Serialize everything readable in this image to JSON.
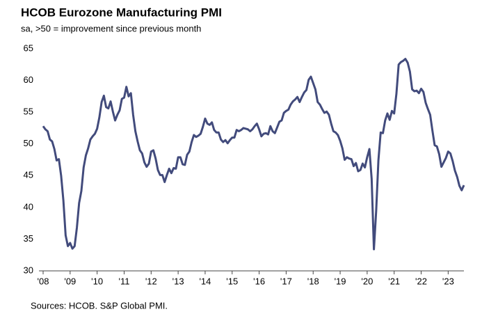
{
  "chart_data": {
    "type": "line",
    "title": "HCOB Eurozone Manufacturing PMI",
    "subtitle": "sa, >50 = improvement  since previous month",
    "source": "Sources: HCOB. S&P Global PMI.",
    "categories": [
      "'08",
      null,
      null,
      null,
      null,
      null,
      null,
      null,
      null,
      null,
      null,
      null,
      "'09",
      null,
      null,
      null,
      null,
      null,
      null,
      null,
      null,
      null,
      null,
      null,
      "'10",
      null,
      null,
      null,
      null,
      null,
      null,
      null,
      null,
      null,
      null,
      null,
      "'11",
      null,
      null,
      null,
      null,
      null,
      null,
      null,
      null,
      null,
      null,
      null,
      "'12",
      null,
      null,
      null,
      null,
      null,
      null,
      null,
      null,
      null,
      null,
      null,
      "'13",
      null,
      null,
      null,
      null,
      null,
      null,
      null,
      null,
      null,
      null,
      null,
      "'14",
      null,
      null,
      null,
      null,
      null,
      null,
      null,
      null,
      null,
      null,
      null,
      "'15",
      null,
      null,
      null,
      null,
      null,
      null,
      null,
      null,
      null,
      null,
      null,
      "'16",
      null,
      null,
      null,
      null,
      null,
      null,
      null,
      null,
      null,
      null,
      null,
      "'17",
      null,
      null,
      null,
      null,
      null,
      null,
      null,
      null,
      null,
      null,
      null,
      "'18",
      null,
      null,
      null,
      null,
      null,
      null,
      null,
      null,
      null,
      null,
      null,
      "'19",
      null,
      null,
      null,
      null,
      null,
      null,
      null,
      null,
      null,
      null,
      null,
      "'20",
      null,
      null,
      null,
      null,
      null,
      null,
      null,
      null,
      null,
      null,
      null,
      "'21",
      null,
      null,
      null,
      null,
      null,
      null,
      null,
      null,
      null,
      null,
      null,
      "'22",
      null,
      null,
      null,
      null,
      null,
      null,
      null,
      null,
      null,
      null,
      null,
      "'23",
      null,
      null,
      null,
      null,
      null,
      null,
      null
    ],
    "series": [
      {
        "name": "Eurozone Manufacturing PMI",
        "color": "#424b7c",
        "values": [
          52.8,
          52.3,
          52.0,
          50.7,
          50.4,
          49.2,
          47.4,
          47.6,
          45.0,
          41.1,
          35.6,
          33.9,
          34.4,
          33.5,
          33.9,
          36.8,
          40.7,
          42.6,
          46.3,
          48.2,
          49.3,
          50.7,
          51.2,
          51.6,
          52.4,
          54.2,
          56.6,
          57.6,
          55.8,
          55.6,
          56.7,
          55.1,
          53.7,
          54.6,
          55.3,
          57.1,
          57.3,
          59.0,
          57.5,
          58.0,
          54.6,
          52.0,
          50.4,
          49.0,
          48.5,
          47.1,
          46.4,
          46.9,
          48.8,
          49.0,
          47.7,
          45.9,
          45.1,
          45.1,
          44.0,
          45.1,
          46.1,
          45.4,
          46.2,
          46.1,
          47.9,
          47.9,
          46.8,
          46.7,
          48.3,
          48.8,
          50.3,
          51.4,
          51.1,
          51.3,
          51.6,
          52.7,
          54.0,
          53.2,
          53.0,
          53.4,
          52.2,
          51.8,
          51.8,
          50.7,
          50.3,
          50.6,
          50.1,
          50.6,
          51.0,
          51.0,
          52.2,
          52.0,
          52.2,
          52.5,
          52.4,
          52.3,
          52.0,
          52.3,
          52.8,
          53.2,
          52.3,
          51.2,
          51.6,
          51.7,
          51.5,
          52.8,
          52.0,
          51.7,
          52.6,
          53.5,
          53.7,
          54.9,
          55.2,
          55.4,
          56.2,
          56.7,
          57.0,
          57.4,
          56.6,
          57.4,
          58.1,
          58.5,
          60.1,
          60.6,
          59.6,
          58.6,
          56.6,
          56.2,
          55.5,
          54.9,
          55.1,
          54.6,
          53.2,
          52.0,
          51.8,
          51.4,
          50.5,
          49.3,
          47.5,
          47.9,
          47.7,
          47.6,
          46.5,
          47.0,
          45.7,
          45.9,
          46.9,
          46.3,
          47.9,
          49.2,
          44.5,
          33.4,
          39.4,
          47.4,
          51.8,
          51.7,
          53.7,
          54.8,
          53.8,
          55.2,
          54.8,
          57.9,
          62.5,
          62.9,
          63.1,
          63.4,
          62.8,
          61.4,
          58.6,
          58.3,
          58.4,
          58.0,
          58.7,
          58.2,
          56.5,
          55.5,
          54.6,
          52.1,
          49.8,
          49.6,
          48.4,
          46.4,
          47.1,
          47.8,
          48.8,
          48.5,
          47.3,
          45.8,
          44.8,
          43.4,
          42.7,
          43.5
        ]
      }
    ],
    "ylim": [
      30,
      65
    ],
    "yticks": [
      30,
      35,
      40,
      45,
      50,
      55,
      60,
      65
    ],
    "grid": false
  }
}
